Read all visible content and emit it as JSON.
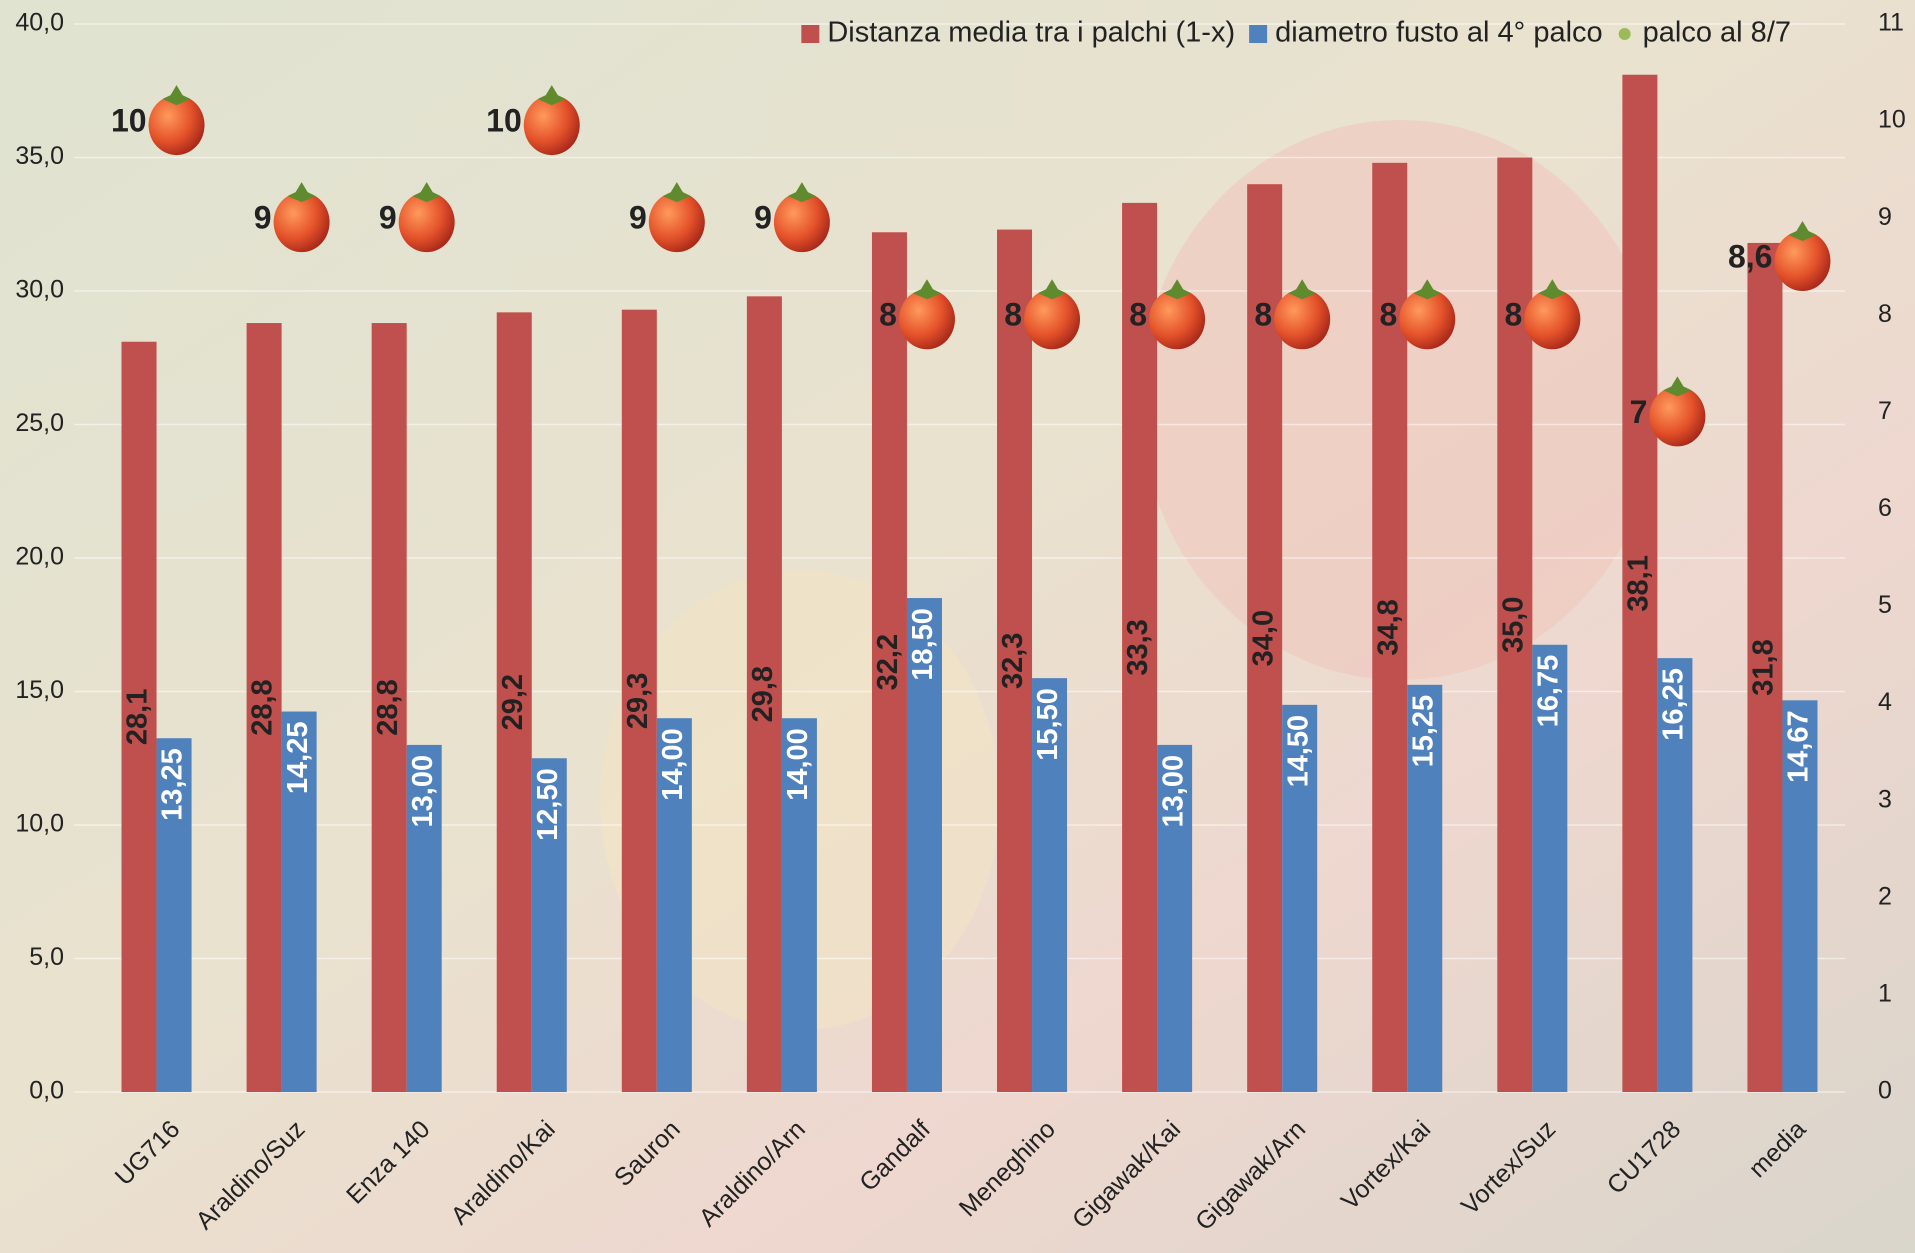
{
  "chart_data": {
    "type": "bar",
    "categories": [
      "UG716",
      "Araldino/Suz",
      "Enza 140",
      "Araldino/Kai",
      "Sauron",
      "Araldino/Arn",
      "Gandalf",
      "Meneghino",
      "Gigawak/Kai",
      "Gigawak/Arn",
      "Vortex/Kai",
      "Vortex/Suz",
      "CU1728",
      "media"
    ],
    "series": [
      {
        "name": "Distanza media tra i palchi (1-x)",
        "color": "#c0504d",
        "values": [
          28.1,
          28.8,
          28.8,
          29.2,
          29.3,
          29.8,
          32.2,
          32.3,
          33.3,
          34.0,
          34.8,
          35.0,
          38.1,
          31.8
        ],
        "value_labels": [
          "28,1",
          "28,8",
          "28,8",
          "29,2",
          "29,3",
          "29,8",
          "32,2",
          "32,3",
          "33,3",
          "34,0",
          "34,8",
          "35,0",
          "38,1",
          "31,8"
        ]
      },
      {
        "name": "diametro fusto al 4° palco",
        "color": "#4f81bd",
        "values": [
          13.25,
          14.25,
          13.0,
          12.5,
          14.0,
          14.0,
          18.5,
          15.5,
          13.0,
          14.5,
          15.25,
          16.75,
          16.25,
          14.67
        ],
        "value_labels": [
          "13,25",
          "14,25",
          "13,00",
          "12,50",
          "14,00",
          "14,00",
          "18,50",
          "15,50",
          "13,00",
          "14,50",
          "15,25",
          "16,75",
          "16,25",
          "14,67"
        ]
      },
      {
        "name": "palco al 8/7",
        "color": "#9bbb59",
        "axis": "y2",
        "values": [
          10,
          9,
          9,
          10,
          9,
          9,
          8,
          8,
          8,
          8,
          8,
          8,
          7,
          8.6
        ],
        "value_labels": [
          "10",
          "9",
          "9",
          "10",
          "9",
          "9",
          "8",
          "8",
          "8",
          "8",
          "8",
          "8",
          "7",
          "8,6"
        ]
      }
    ],
    "ylim": [
      0,
      40
    ],
    "yticks": [
      {
        "value": 0,
        "label": "0,0"
      },
      {
        "value": 5,
        "label": "5,0"
      },
      {
        "value": 10,
        "label": "10,0"
      },
      {
        "value": 15,
        "label": "15,0"
      },
      {
        "value": 20,
        "label": "20,0"
      },
      {
        "value": 25,
        "label": "25,0"
      },
      {
        "value": 30,
        "label": "30,0"
      },
      {
        "value": 35,
        "label": "35,0"
      },
      {
        "value": 40,
        "label": "40,0"
      }
    ],
    "y2lim": [
      0,
      11
    ],
    "y2ticks": [
      0,
      1,
      2,
      3,
      4,
      5,
      6,
      7,
      8,
      9,
      10,
      11
    ],
    "grid": true,
    "legend": "top-right"
  }
}
